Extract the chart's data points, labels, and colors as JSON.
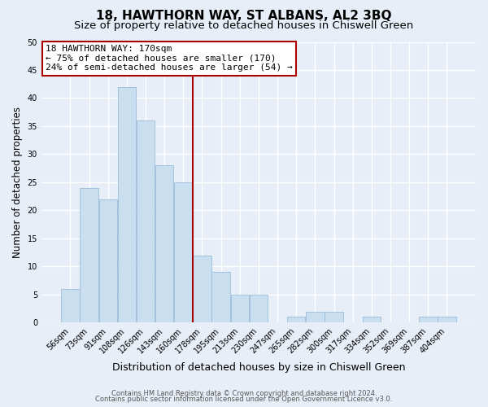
{
  "title": "18, HAWTHORN WAY, ST ALBANS, AL2 3BQ",
  "subtitle": "Size of property relative to detached houses in Chiswell Green",
  "xlabel": "Distribution of detached houses by size in Chiswell Green",
  "ylabel": "Number of detached properties",
  "bin_labels": [
    "56sqm",
    "73sqm",
    "91sqm",
    "108sqm",
    "126sqm",
    "143sqm",
    "160sqm",
    "178sqm",
    "195sqm",
    "213sqm",
    "230sqm",
    "247sqm",
    "265sqm",
    "282sqm",
    "300sqm",
    "317sqm",
    "334sqm",
    "352sqm",
    "369sqm",
    "387sqm",
    "404sqm"
  ],
  "bar_heights": [
    6,
    24,
    22,
    42,
    36,
    28,
    25,
    12,
    9,
    5,
    5,
    0,
    1,
    2,
    2,
    0,
    1,
    0,
    0,
    1,
    1
  ],
  "bar_color": "#c9dff0",
  "bar_edge_color": "#9bbcd8",
  "highlight_line_color": "#aa0000",
  "ylim": [
    0,
    50
  ],
  "yticks": [
    0,
    5,
    10,
    15,
    20,
    25,
    30,
    35,
    40,
    45,
    50
  ],
  "annotation_title": "18 HAWTHORN WAY: 170sqm",
  "annotation_line1": "← 75% of detached houses are smaller (170)",
  "annotation_line2": "24% of semi-detached houses are larger (54) →",
  "annotation_box_facecolor": "#ffffff",
  "annotation_box_edgecolor": "#aa0000",
  "footer_line1": "Contains HM Land Registry data © Crown copyright and database right 2024.",
  "footer_line2": "Contains public sector information licensed under the Open Government Licence v3.0.",
  "background_color": "#e8eef8",
  "grid_color": "#ffffff",
  "title_fontsize": 11,
  "subtitle_fontsize": 9.5,
  "xlabel_fontsize": 9,
  "ylabel_fontsize": 8.5,
  "tick_fontsize": 7,
  "annotation_fontsize": 8,
  "footer_fontsize": 6
}
